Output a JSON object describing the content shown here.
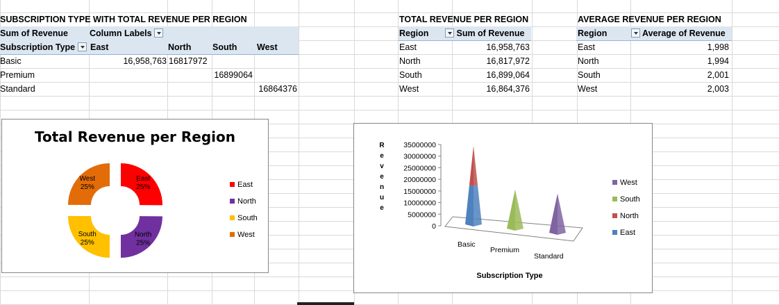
{
  "pivot1": {
    "title": "SUBSCRIPTION TYPE WITH TOTAL REVENUE PER REGION",
    "values_label": "Sum of Revenue",
    "column_labels": "Column Labels",
    "row_field": "Subscription Type",
    "columns": [
      "East",
      "North",
      "South",
      "West"
    ],
    "rows": [
      {
        "label": "Basic",
        "east": "16,958,763",
        "north": "16817972",
        "south": "",
        "west": ""
      },
      {
        "label": "Premium",
        "east": "",
        "north": "",
        "south": "16899064",
        "west": ""
      },
      {
        "label": "Standard",
        "east": "",
        "north": "",
        "south": "",
        "west": "16864376"
      }
    ]
  },
  "pivot2": {
    "title": "TOTAL REVENUE PER REGION",
    "col1": "Region",
    "col2": "Sum of Revenue",
    "rows": [
      {
        "region": "East",
        "value": "16,958,763"
      },
      {
        "region": "North",
        "value": "16,817,972"
      },
      {
        "region": "South",
        "value": "16,899,064"
      },
      {
        "region": "West",
        "value": "16,864,376"
      }
    ]
  },
  "pivot3": {
    "title": "AVERAGE REVENUE PER REGION",
    "col1": "Region",
    "col2": "Average of Revenue",
    "rows": [
      {
        "region": "East",
        "value": "1,998"
      },
      {
        "region": "North",
        "value": "1,994"
      },
      {
        "region": "South",
        "value": "2,001"
      },
      {
        "region": "West",
        "value": "2,003"
      }
    ]
  },
  "colors": {
    "east": "#ff0000",
    "north": "#7030a0",
    "south": "#ffc000",
    "west": "#e36c09",
    "pyr_east": "#4f81bd",
    "pyr_north": "#c0504d",
    "pyr_south": "#9bbb59",
    "pyr_west": "#8064a2"
  },
  "chart_data": [
    {
      "type": "pie",
      "title": "Total Revenue per Region",
      "slices": [
        {
          "name": "East",
          "label": "East",
          "pct_label": "25%",
          "value": 16958763
        },
        {
          "name": "North",
          "label": "North",
          "pct_label": "25%",
          "value": 16817972
        },
        {
          "name": "South",
          "label": "South",
          "pct_label": "25%",
          "value": 16899064
        },
        {
          "name": "West",
          "label": "West",
          "pct_label": "25%",
          "value": 16864376
        }
      ],
      "legend": [
        "East",
        "North",
        "South",
        "West"
      ],
      "legend_position": "right"
    },
    {
      "type": "bar",
      "categories": [
        "Basic",
        "Premium",
        "Standard"
      ],
      "series": [
        {
          "name": "East",
          "values": [
            16958763,
            0,
            0
          ]
        },
        {
          "name": "North",
          "values": [
            16817972,
            0,
            0
          ]
        },
        {
          "name": "South",
          "values": [
            0,
            16899064,
            0
          ]
        },
        {
          "name": "West",
          "values": [
            0,
            0,
            16864376
          ]
        }
      ],
      "ylabel": "Revenue",
      "xlabel": "Subscription Type",
      "y_ticks": [
        "35000000",
        "30000000",
        "25000000",
        "20000000",
        "15000000",
        "10000000",
        "5000000",
        "0"
      ],
      "ylim": [
        0,
        35000000
      ],
      "legend": [
        "West",
        "South",
        "North",
        "East"
      ],
      "legend_position": "right"
    }
  ]
}
